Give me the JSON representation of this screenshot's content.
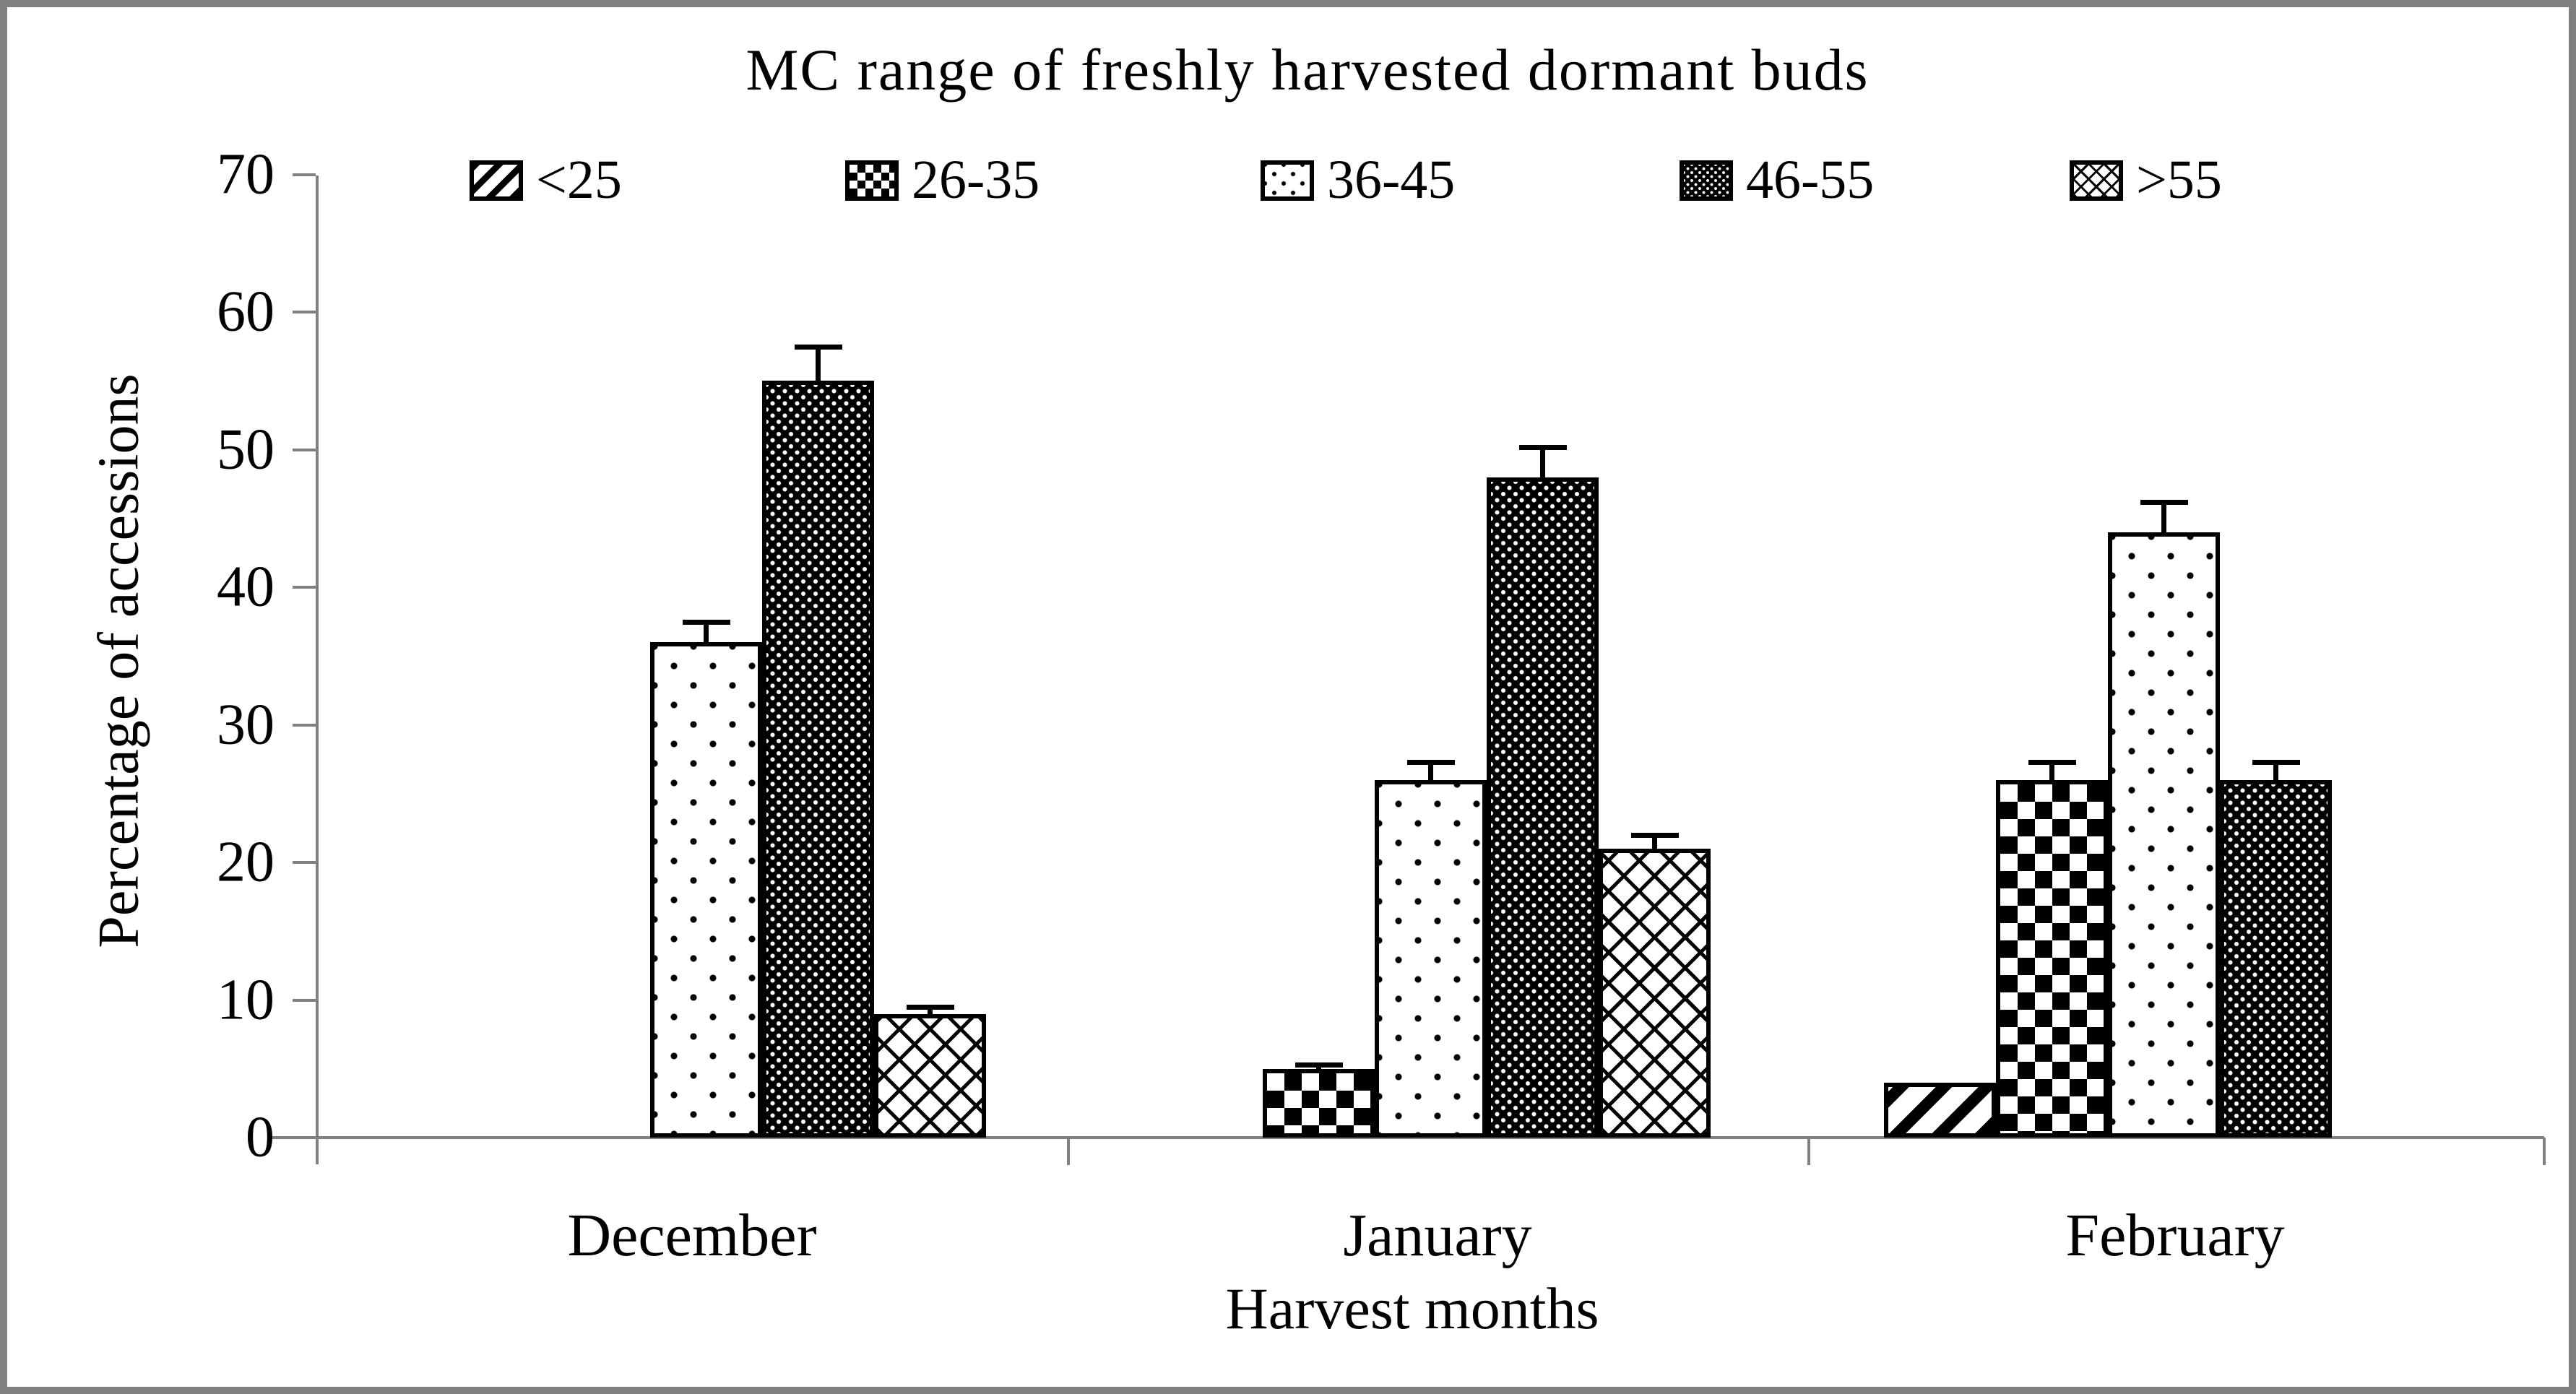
{
  "figure": {
    "background_color": "#ffffff",
    "border_color": "#7f7f7f",
    "axis_color": "#808080",
    "bar_outline_color": "#000000"
  },
  "chart_data": {
    "type": "bar",
    "title": "MC range of freshly harvested dormant buds",
    "xlabel": "Harvest months",
    "ylabel": "Percentage of accessions",
    "ylim": [
      0,
      70
    ],
    "yticks": [
      0,
      10,
      20,
      30,
      40,
      50,
      60,
      70
    ],
    "grid": false,
    "legend_position": "top",
    "categories": [
      "December",
      "January",
      "February"
    ],
    "series": [
      {
        "name": "<25",
        "pattern": "diagonal-stripe",
        "values": [
          0,
          0,
          4
        ],
        "errors": [
          0,
          0,
          0
        ]
      },
      {
        "name": "26-35",
        "pattern": "checkerboard",
        "values": [
          0,
          5,
          26
        ],
        "errors": [
          0,
          0.3,
          1.3
        ]
      },
      {
        "name": "36-45",
        "pattern": "sparse-dots",
        "values": [
          36,
          26,
          44
        ],
        "errors": [
          1.5,
          1.3,
          2.2
        ]
      },
      {
        "name": "46-55",
        "pattern": "dense-dots",
        "values": [
          55,
          48,
          26
        ],
        "errors": [
          2.5,
          2.2,
          1.3
        ]
      },
      {
        "name": ">55",
        "pattern": "diagonal-weave",
        "values": [
          9,
          21,
          0
        ],
        "errors": [
          0.5,
          1.0,
          0
        ]
      }
    ]
  }
}
